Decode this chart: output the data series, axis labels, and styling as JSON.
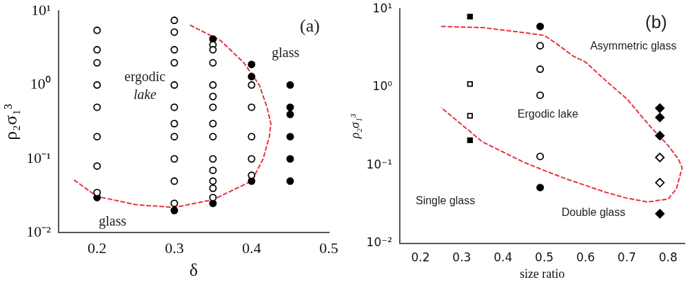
{
  "chart_data": [
    {
      "type": "scatter",
      "xlabel": "δ",
      "ylabel": "ρ₂σ₁³",
      "log": "y",
      "legend": false,
      "grid": false,
      "xlim": [
        0.15,
        0.5
      ],
      "xticks": [
        0.2,
        0.3,
        0.4,
        0.5
      ],
      "ylim": [
        0.01,
        10
      ],
      "yticks": [
        {
          "value": 0.01,
          "label": "10⁻²"
        },
        {
          "value": 0.1,
          "label": "10⁻¹"
        },
        {
          "value": 1,
          "label": "10⁰"
        },
        {
          "value": 10,
          "label": "10¹"
        }
      ],
      "annotations": [
        "(a)",
        "ergodic",
        "lake",
        "glass",
        "glass"
      ],
      "series": [
        {
          "type": "scatter",
          "marker": "circle",
          "color": "#ffffff",
          "x": [
            0.2,
            0.2,
            0.2,
            0.2,
            0.2,
            0.2,
            0.2,
            0.2,
            0.3,
            0.3,
            0.3,
            0.3,
            0.3,
            0.3,
            0.3,
            0.3,
            0.3,
            0.3,
            0.3,
            0.35,
            0.35,
            0.35,
            0.35,
            0.35,
            0.35,
            0.35,
            0.35,
            0.35,
            0.35,
            0.35,
            0.35,
            0.35,
            0.4,
            0.4,
            0.4,
            0.4,
            0.4
          ],
          "values": [
            5.5,
            3,
            2,
            1,
            0.5,
            0.2,
            0.08,
            0.035,
            7.5,
            5.2,
            3,
            2,
            1,
            0.5,
            0.3,
            0.2,
            0.1,
            0.05,
            0.025,
            3.5,
            3,
            2,
            1,
            0.7,
            0.5,
            0.3,
            0.2,
            0.1,
            0.07,
            0.05,
            0.04,
            0.03,
            1,
            0.5,
            0.2,
            0.1,
            0.06
          ]
        },
        {
          "type": "scatter",
          "marker": "circle",
          "color": "#000000",
          "x": [
            0.2,
            0.3,
            0.35,
            0.35,
            0.4,
            0.4,
            0.4,
            0.45,
            0.45,
            0.45,
            0.45,
            0.45,
            0.45
          ],
          "values": [
            0.03,
            0.02,
            4.2,
            0.025,
            1.9,
            1.3,
            0.05,
            1,
            0.5,
            0.4,
            0.2,
            0.1,
            0.05
          ]
        },
        {
          "type": "line",
          "marker": "none",
          "line_style": "dashed",
          "color": "#e8313f",
          "x": [
            0.17,
            0.2,
            0.25,
            0.3,
            0.35,
            0.4,
            0.415,
            0.423,
            0.425,
            0.42,
            0.41,
            0.39,
            0.36,
            0.32
          ],
          "values": [
            0.052,
            0.031,
            0.024,
            0.022,
            0.028,
            0.05,
            0.1,
            0.2,
            0.3,
            0.5,
            1,
            2,
            4,
            6.5
          ]
        }
      ]
    },
    {
      "type": "scatter",
      "xlabel": "size ratio",
      "ylabel": "ρ₂σ₁³",
      "log": "y",
      "legend": false,
      "grid": false,
      "xlim": [
        0.15,
        0.84
      ],
      "xticks": [
        0.2,
        0.3,
        0.4,
        0.5,
        0.6,
        0.7,
        0.8
      ],
      "ylim": [
        0.01,
        10
      ],
      "yticks": [
        {
          "value": 0.01,
          "label": "10⁻²"
        },
        {
          "value": 0.1,
          "label": "10⁻¹"
        },
        {
          "value": 1,
          "label": "10⁰"
        },
        {
          "value": 10,
          "label": "10¹"
        }
      ],
      "annotations": [
        "(b)",
        "Asymmetric glass",
        "Ergodic lake",
        "Single glass",
        "Double glass"
      ],
      "series": [
        {
          "type": "scatter",
          "marker": "square",
          "color": "#000000",
          "x": [
            0.32,
            0.32
          ],
          "values": [
            8,
            0.21
          ]
        },
        {
          "type": "scatter",
          "marker": "square",
          "color": "#ffffff",
          "x": [
            0.32,
            0.32
          ],
          "values": [
            1.1,
            0.43
          ]
        },
        {
          "type": "scatter",
          "marker": "circle",
          "color": "#000000",
          "x": [
            0.49,
            0.49
          ],
          "values": [
            6,
            0.052
          ]
        },
        {
          "type": "scatter",
          "marker": "circle",
          "color": "#ffffff",
          "x": [
            0.49,
            0.49,
            0.49,
            0.49
          ],
          "values": [
            3.4,
            1.7,
            0.79,
            0.13
          ]
        },
        {
          "type": "scatter",
          "marker": "diamond",
          "color": "#000000",
          "x": [
            0.78,
            0.78,
            0.78,
            0.78
          ],
          "values": [
            0.54,
            0.41,
            0.24,
            0.024
          ]
        },
        {
          "type": "scatter",
          "marker": "diamond",
          "color": "#ffffff",
          "x": [
            0.78,
            0.78
          ],
          "values": [
            0.126,
            0.06
          ]
        },
        {
          "type": "line",
          "marker": "none",
          "line_style": "dashed",
          "color": "#e8313f",
          "x": [
            0.25,
            0.35,
            0.45,
            0.5,
            0.53,
            0.57,
            0.6,
            0.65,
            0.7,
            0.76,
            0.8,
            0.825,
            0.834,
            0.82,
            0.8,
            0.75,
            0.7,
            0.65,
            0.55,
            0.5,
            0.45,
            0.35,
            0.25
          ],
          "values": [
            6,
            5.8,
            5,
            4.6,
            3.6,
            2.5,
            2.1,
            1.2,
            0.71,
            0.3,
            0.18,
            0.12,
            0.093,
            0.05,
            0.037,
            0.034,
            0.038,
            0.045,
            0.068,
            0.086,
            0.11,
            0.2,
            0.55
          ]
        }
      ]
    }
  ]
}
